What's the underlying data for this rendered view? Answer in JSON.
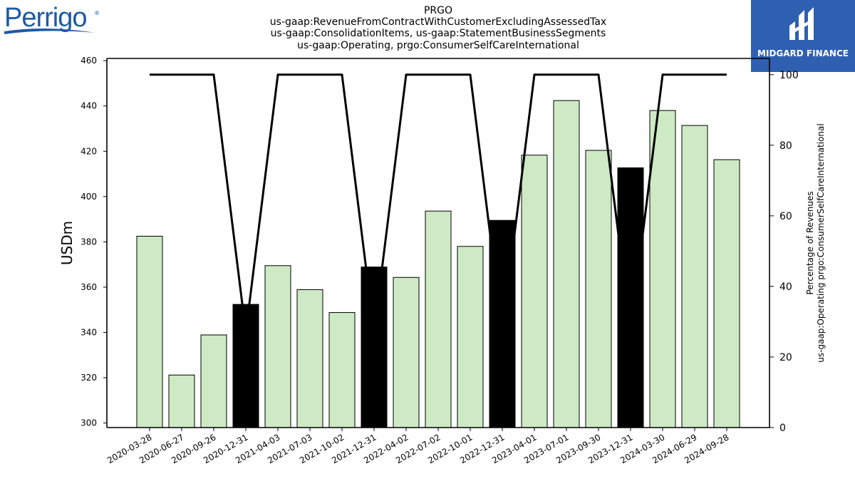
{
  "chart_data": {
    "type": "bar",
    "title_lines": [
      "PRGO",
      "us-gaap:RevenueFromContractWithCustomerExcludingAssessedTax",
      "us-gaap:ConsolidationItems, us-gaap:StatementBusinessSegments",
      "us-gaap:Operating, prgo:ConsumerSelfCareInternational"
    ],
    "ylabel": "USDm",
    "y2label_lines": [
      "Percentage of Revenues",
      "us-gaap:Operating prgo:ConsumerSelfCareInternational"
    ],
    "ylim": [
      298,
      461
    ],
    "y2lim": [
      0,
      104.6
    ],
    "yticks": [
      300,
      320,
      340,
      360,
      380,
      400,
      420,
      440,
      460
    ],
    "y2ticks": [
      0,
      20,
      40,
      60,
      80,
      100
    ],
    "categories": [
      "2020-03-28",
      "2020-06-27",
      "2020-09-26",
      "2020-12-31",
      "2021-04-03",
      "2021-07-03",
      "2021-10-02",
      "2021-12-31",
      "2022-04-02",
      "2022-07-02",
      "2022-10-01",
      "2022-12-31",
      "2023-04-01",
      "2023-07-01",
      "2023-09-30",
      "2023-12-31",
      "2024-03-30",
      "2024-06-29",
      "2024-09-28"
    ],
    "series": [
      {
        "type": "bar",
        "values": [
          382.5,
          321.2,
          338.9,
          352.4,
          369.5,
          358.9,
          348.8,
          368.9,
          364.3,
          393.6,
          378.0,
          389.5,
          418.3,
          442.4,
          420.4,
          412.7,
          438.0,
          431.4,
          416.3
        ],
        "colors": [
          "#cdeac4",
          "#cdeac4",
          "#cdeac4",
          "#000000",
          "#cdeac4",
          "#cdeac4",
          "#cdeac4",
          "#000000",
          "#cdeac4",
          "#cdeac4",
          "#cdeac4",
          "#000000",
          "#cdeac4",
          "#cdeac4",
          "#cdeac4",
          "#000000",
          "#cdeac4",
          "#cdeac4",
          "#cdeac4"
        ]
      },
      {
        "type": "line",
        "axis": "right",
        "values": [
          100,
          100,
          100,
          27,
          100,
          100,
          100,
          27,
          100,
          100,
          100,
          27,
          100,
          100,
          100,
          27,
          100,
          100,
          100
        ],
        "color": "#000000"
      }
    ],
    "grid": false,
    "legend": "none"
  },
  "branding": {
    "left_logo_text": "Perrigo",
    "left_logo_mark": "®",
    "right_logo_text": "MIDGARD FINANCE"
  },
  "colors": {
    "bar_default": "#cdeac4",
    "bar_highlight": "#000000",
    "right_logo_bg": "#2f5fb0",
    "perrigo_blue": "#1d59a6"
  }
}
